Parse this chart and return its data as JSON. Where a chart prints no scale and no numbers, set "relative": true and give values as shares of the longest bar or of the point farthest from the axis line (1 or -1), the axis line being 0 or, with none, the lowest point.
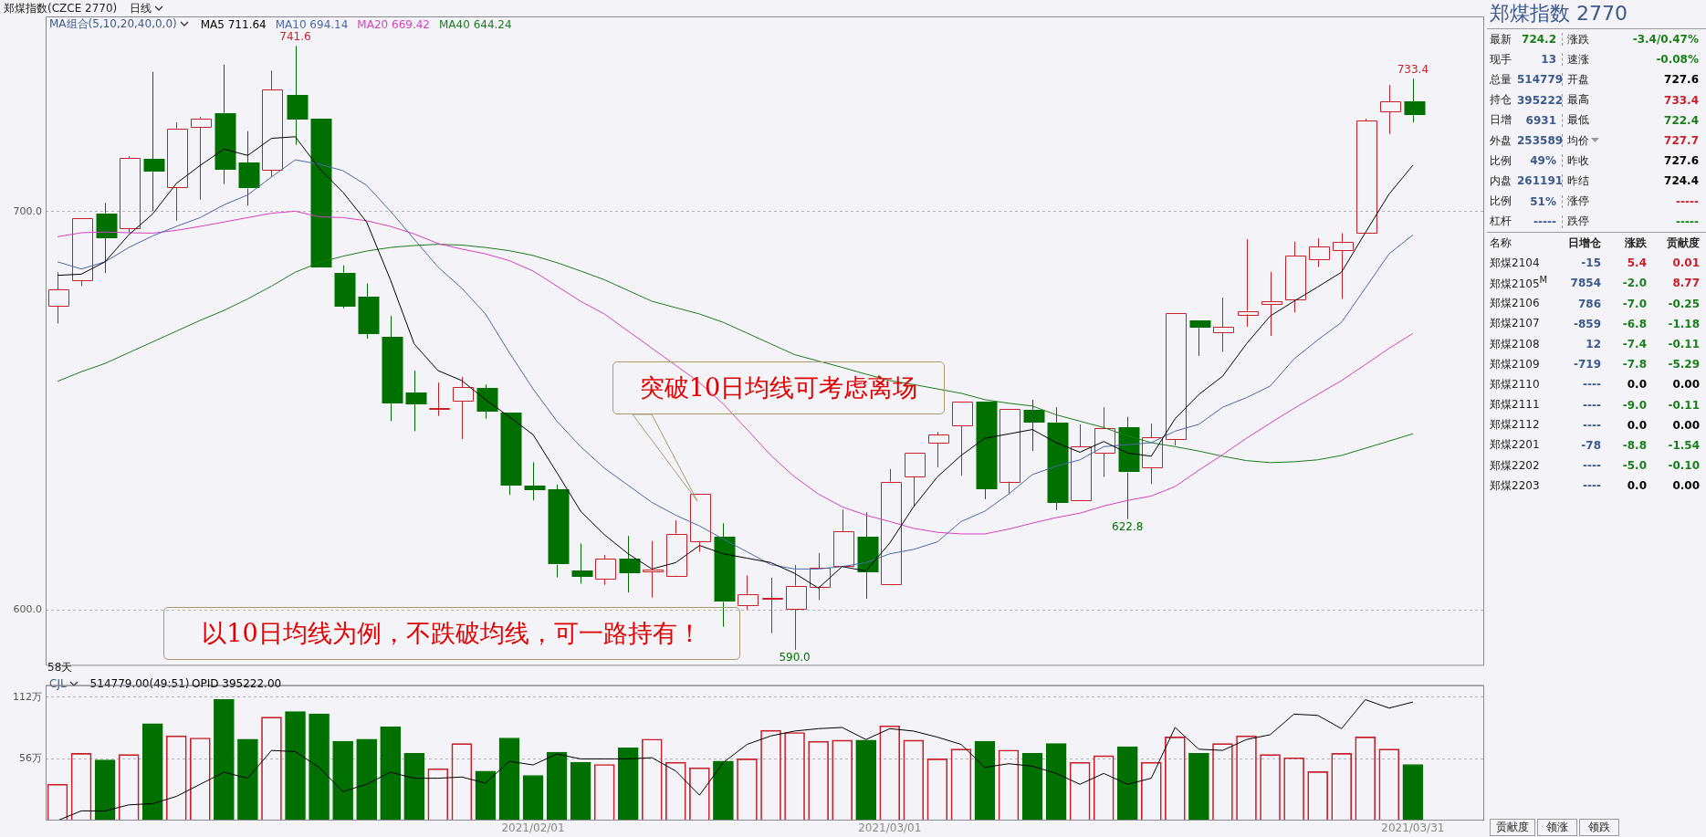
{
  "chart_data": [
    {
      "type": "candlestick",
      "title": "郑煤指数(CZCE 2770)",
      "subtitle": "日线",
      "legend_title": "MA组合(5,10,20,40,0,0)",
      "legend": "top left",
      "grid": "y",
      "tick_labels": "y",
      "categories": [
        null,
        null,
        null,
        null,
        null,
        null,
        null,
        null,
        null,
        null,
        null,
        null,
        null,
        null,
        null,
        null,
        null,
        null,
        null,
        null,
        "2021/02/01",
        null,
        null,
        null,
        null,
        null,
        null,
        null,
        null,
        null,
        null,
        null,
        null,
        null,
        null,
        "2021/03/01",
        null,
        null,
        null,
        null,
        null,
        null,
        null,
        null,
        null,
        null,
        null,
        null,
        null,
        null,
        null,
        null,
        null,
        null,
        null,
        null,
        null,
        "2021/03/31"
      ],
      "ohlc": [
        [
          676.3,
          684.8,
          671.9,
          680.4
        ],
        [
          682.8,
          698.3,
          681.3,
          698.3
        ],
        [
          699.6,
          702.2,
          684.6,
          693.4
        ],
        [
          695.7,
          713.9,
          694.7,
          713.4
        ],
        [
          713.2,
          735.1,
          700.1,
          710.0
        ],
        [
          706.2,
          722.4,
          697.7,
          720.9
        ],
        [
          721.3,
          723.8,
          703.0,
          723.4
        ],
        [
          724.8,
          736.9,
          706.9,
          710.6
        ],
        [
          712.3,
          720.2,
          701.5,
          705.8
        ],
        [
          710.5,
          735.4,
          708.7,
          730.6
        ],
        [
          729.2,
          741.6,
          716.8,
          723.1
        ],
        [
          723.4,
          723.4,
          686.1,
          686.1
        ],
        [
          684.7,
          686.5,
          675.7,
          676.3
        ],
        [
          678.7,
          682.0,
          668.1,
          669.4
        ],
        [
          668.5,
          673.8,
          647.4,
          651.8
        ],
        [
          654.6,
          660.1,
          644.9,
          651.6
        ],
        [
          650.3,
          657.1,
          648.7,
          650.6
        ],
        [
          652.5,
          658.5,
          642.9,
          655.9
        ],
        [
          655.7,
          656.6,
          648.0,
          649.8
        ],
        [
          649.5,
          649.5,
          628.9,
          631.2
        ],
        [
          631.2,
          637.1,
          627.5,
          630.1
        ],
        [
          630.2,
          631.5,
          608.2,
          611.3
        ],
        [
          609.9,
          616.7,
          606.6,
          608.4
        ],
        [
          607.8,
          613.8,
          606.3,
          612.8
        ],
        [
          612.8,
          618.6,
          604.4,
          609.2
        ],
        [
          609.7,
          617.3,
          603.1,
          610.1
        ],
        [
          608.6,
          622.5,
          608.4,
          619.2
        ],
        [
          617.1,
          629.1,
          614.6,
          629.1
        ],
        [
          618.3,
          621.8,
          595.8,
          602.0
        ],
        [
          601.2,
          608.7,
          600.1,
          604.0
        ],
        [
          602.7,
          608.1,
          594.2,
          603.0
        ],
        [
          600.3,
          611.3,
          590.0,
          606.1
        ],
        [
          605.9,
          614.3,
          602.5,
          610.6
        ],
        [
          611.1,
          625.2,
          611.1,
          619.8
        ],
        [
          618.4,
          624.5,
          602.8,
          609.5
        ],
        [
          606.6,
          635.4,
          606.6,
          632.2
        ],
        [
          633.5,
          639.4,
          625.9,
          639.4
        ],
        [
          642.0,
          644.7,
          635.8,
          644.0
        ],
        [
          646.3,
          652.3,
          633.7,
          652.3
        ],
        [
          652.4,
          652.4,
          627.8,
          630.5
        ],
        [
          632.2,
          650.5,
          629.1,
          650.5
        ],
        [
          650.3,
          652.8,
          639.9,
          647.2
        ],
        [
          647.1,
          650.9,
          625.1,
          627.0
        ],
        [
          627.4,
          646.6,
          627.4,
          641.0
        ],
        [
          639.4,
          650.9,
          633.4,
          645.6
        ],
        [
          645.8,
          648.5,
          622.8,
          634.5
        ],
        [
          635.7,
          646.8,
          631.6,
          643.3
        ],
        [
          642.9,
          674.6,
          641.3,
          674.6
        ],
        [
          672.7,
          672.7,
          663.8,
          670.8
        ],
        [
          669.7,
          678.4,
          664.8,
          671.0
        ],
        [
          674.2,
          693.1,
          671.1,
          675.1
        ],
        [
          676.8,
          684.9,
          668.8,
          677.5
        ],
        [
          678.0,
          692.4,
          674.7,
          688.9
        ],
        [
          688.0,
          693.3,
          686.1,
          691.2
        ],
        [
          690.3,
          694.6,
          678.1,
          692.3
        ],
        [
          694.7,
          723.3,
          694.7,
          722.8
        ],
        [
          725.1,
          731.8,
          719.5,
          727.6
        ],
        [
          727.6,
          733.4,
          722.4,
          724.2
        ]
      ],
      "colors": [
        "#c8202a",
        "#c8202a",
        "#007000",
        "#c8202a",
        "#007000",
        "#c8202a",
        "#c8202a",
        "#007000",
        "#007000",
        "#c8202a",
        "#007000",
        "#007000",
        "#007000",
        "#007000",
        "#007000",
        "#007000",
        "#c8202a",
        "#c8202a",
        "#007000",
        "#007000",
        "#007000",
        "#007000",
        "#007000",
        "#c8202a",
        "#007000",
        "#c8202a",
        "#c8202a",
        "#c8202a",
        "#007000",
        "#c8202a",
        "#c8202a",
        "#c8202a",
        "#c8202a",
        "#c8202a",
        "#007000",
        "#c8202a",
        "#c8202a",
        "#c8202a",
        "#c8202a",
        "#007000",
        "#c8202a",
        "#007000",
        "#007000",
        "#c8202a",
        "#c8202a",
        "#007000",
        "#c8202a",
        "#c8202a",
        "#007000",
        "#c8202a",
        "#c8202a",
        "#c8202a",
        "#c8202a",
        "#c8202a",
        "#c8202a",
        "#c8202a",
        "#c8202a",
        "#007000"
      ],
      "series": [
        {
          "name": "MA5 711.64",
          "type": "line",
          "color": "#000000",
          "values": [
            684.0,
            684.3,
            687.4,
            694.2,
            699.4,
            707.1,
            711.6,
            715.7,
            714.1,
            718.4,
            718.8,
            710.9,
            704.9,
            697.4,
            682.9,
            666.8,
            660.1,
            657.6,
            652.8,
            648.5,
            644.0,
            634.5,
            624.8,
            618.9,
            614.1,
            610.3,
            611.9,
            616.2,
            614.1,
            613.0,
            611.9,
            609.2,
            605.5,
            610.9,
            609.8,
            616.8,
            625.9,
            633.4,
            638.8,
            643.1,
            644.2,
            645.3,
            642.0,
            639.6,
            642.3,
            639.4,
            638.6,
            648.0,
            654.1,
            658.7,
            666.8,
            673.8,
            677.5,
            681.1,
            684.8,
            694.7,
            704.4,
            711.64
          ]
        },
        {
          "name": "MA10 694.14",
          "type": "line",
          "color": "#4a68a8",
          "values": [
            687.4,
            685.6,
            687.4,
            691.0,
            693.9,
            696.3,
            698.5,
            701.7,
            704.2,
            708.7,
            713.0,
            711.9,
            710.3,
            706.6,
            700.1,
            693.1,
            686.1,
            680.8,
            674.3,
            664.6,
            655.5,
            647.4,
            641.0,
            635.6,
            631.3,
            627.0,
            623.8,
            621.1,
            617.8,
            614.6,
            611.4,
            610.3,
            610.3,
            610.9,
            611.9,
            614.1,
            615.2,
            617.1,
            622.2,
            624.8,
            629.1,
            634.0,
            636.1,
            637.7,
            641.0,
            641.5,
            642.0,
            644.9,
            646.6,
            650.9,
            653.3,
            656.2,
            663.0,
            667.8,
            672.2,
            680.8,
            689.4,
            694.14
          ]
        },
        {
          "name": "MA20 669.42",
          "type": "line",
          "color": "#d63fc0",
          "values": [
            693.7,
            694.7,
            694.9,
            694.7,
            694.6,
            695.3,
            696.3,
            697.4,
            698.5,
            699.6,
            700.1,
            698.7,
            698.5,
            697.7,
            696.3,
            694.4,
            692.0,
            690.6,
            689.4,
            687.7,
            685.1,
            681.3,
            677.5,
            674.3,
            670.0,
            665.7,
            661.4,
            657.1,
            651.7,
            645.3,
            638.8,
            633.4,
            629.1,
            625.9,
            623.8,
            622.2,
            620.5,
            619.5,
            619.1,
            619.1,
            620.3,
            621.8,
            623.2,
            624.3,
            626.1,
            627.5,
            628.6,
            631.0,
            635.1,
            639.0,
            643.1,
            646.9,
            650.6,
            654.1,
            657.6,
            661.6,
            665.7,
            669.42
          ]
        },
        {
          "name": "MA40 644.24",
          "type": "line",
          "color": "#1f7a1f",
          "values": [
            657.4,
            659.8,
            661.9,
            664.6,
            667.3,
            670.0,
            672.7,
            675.2,
            678.1,
            681.3,
            684.8,
            687.2,
            688.8,
            690.1,
            691.0,
            691.5,
            691.8,
            691.6,
            691.0,
            690.2,
            689.0,
            687.2,
            685.1,
            682.9,
            680.2,
            677.5,
            675.9,
            674.3,
            672.2,
            669.5,
            666.8,
            664.1,
            662.5,
            660.9,
            659.2,
            657.6,
            656.6,
            655.5,
            654.4,
            652.8,
            651.9,
            651.2,
            649.0,
            647.4,
            645.8,
            643.7,
            642.0,
            641.0,
            639.9,
            638.6,
            637.5,
            637.0,
            637.2,
            637.7,
            638.8,
            640.6,
            642.4,
            644.24
          ]
        }
      ],
      "ylim": [
        586,
        749
      ],
      "yticks": [
        {
          "value": 600,
          "label": "600.0"
        },
        {
          "value": 700,
          "label": "700.0"
        }
      ],
      "annotations": [
        "突破10日均线可考虑离场",
        "以10日均线为例，不跌破均线，可一路持有！",
        "58天",
        {
          "text": "741.6",
          "y": 741.6
        },
        {
          "text": "733.4",
          "y": 733.4
        },
        {
          "text": "590.0",
          "y": 590.0
        },
        {
          "text": "622.8",
          "y": 622.8
        }
      ]
    },
    {
      "type": "bar",
      "legend_title": "CJL",
      "legend": "top left",
      "grid": "y",
      "categories": [
        null,
        null,
        null,
        null,
        null,
        null,
        null,
        null,
        null,
        null,
        null,
        null,
        null,
        null,
        null,
        null,
        null,
        null,
        null,
        null,
        "2021/02/01",
        null,
        null,
        null,
        null,
        null,
        null,
        null,
        null,
        null,
        null,
        null,
        null,
        null,
        null,
        "2021/03/01",
        null,
        null,
        null,
        null,
        null,
        null,
        null,
        null,
        null,
        null,
        null,
        null,
        null,
        null,
        null,
        null,
        null,
        null,
        null,
        null,
        null,
        "2021/03/31"
      ],
      "series": [
        {
          "name": "514779.00(49:51)",
          "colors": [
            "#c8202a",
            "#c8202a",
            "#007000",
            "#c8202a",
            "#007000",
            "#c8202a",
            "#c8202a",
            "#007000",
            "#007000",
            "#c8202a",
            "#007000",
            "#007000",
            "#007000",
            "#007000",
            "#007000",
            "#007000",
            "#c8202a",
            "#c8202a",
            "#007000",
            "#007000",
            "#007000",
            "#007000",
            "#007000",
            "#c8202a",
            "#007000",
            "#c8202a",
            "#c8202a",
            "#c8202a",
            "#007000",
            "#c8202a",
            "#c8202a",
            "#c8202a",
            "#c8202a",
            "#c8202a",
            "#007000",
            "#c8202a",
            "#c8202a",
            "#c8202a",
            "#c8202a",
            "#007000",
            "#c8202a",
            "#007000",
            "#007000",
            "#c8202a",
            "#c8202a",
            "#007000",
            "#c8202a",
            "#c8202a",
            "#007000",
            "#c8202a",
            "#c8202a",
            "#c8202a",
            "#c8202a",
            "#c8202a",
            "#c8202a",
            "#c8202a",
            "#c8202a",
            "#007000"
          ],
          "values": [
            33,
            61,
            55,
            60,
            88,
            77,
            75,
            110,
            74,
            94,
            99,
            97,
            72,
            74,
            85,
            61,
            47,
            70,
            45,
            75,
            41,
            62,
            53,
            51,
            66,
            74,
            53,
            48,
            54,
            56,
            82,
            80,
            72,
            73,
            73,
            86,
            73,
            56,
            65,
            72,
            64,
            61,
            70,
            53,
            59,
            67,
            53,
            76,
            61,
            70,
            77,
            60,
            57,
            44.4,
            61,
            76,
            65,
            51
          ]
        }
      ],
      "ylim": [
        0,
        123
      ],
      "yticks": [
        {
          "value": 56,
          "label": "56万"
        },
        {
          "value": 112,
          "label": "112万"
        }
      ]
    },
    {
      "type": "line",
      "relative": true,
      "tick_labels": false,
      "categories": [
        null,
        null,
        null,
        null,
        null,
        null,
        null,
        null,
        null,
        null,
        null,
        null,
        null,
        null,
        null,
        null,
        null,
        null,
        null,
        null,
        "2021/02/01",
        null,
        null,
        null,
        null,
        null,
        null,
        null,
        null,
        null,
        null,
        null,
        null,
        null,
        null,
        "2021/03/01",
        null,
        null,
        null,
        null,
        null,
        null,
        null,
        null,
        null,
        null,
        null,
        null,
        null,
        null,
        null,
        null,
        null,
        null,
        null,
        null,
        null,
        "2021/03/31"
      ],
      "series": [
        {
          "name": "OPID 395222.00",
          "color": "#000000",
          "values": [
            0,
            0.08,
            0.08,
            0.13,
            0.14,
            0.2,
            0.3,
            0.4,
            0.35,
            0.58,
            0.57,
            0.44,
            0.24,
            0.3,
            0.4,
            0.35,
            0.35,
            0.36,
            0.31,
            0.49,
            0.46,
            0.55,
            0.51,
            0.51,
            0.51,
            0.52,
            0.41,
            0.21,
            0.48,
            0.63,
            0.7,
            0.74,
            0.76,
            0.77,
            0.67,
            0.76,
            0.74,
            0.69,
            0.63,
            0.44,
            0.47,
            0.45,
            0.39,
            0.3,
            0.39,
            0.3,
            0.35,
            0.77,
            0.59,
            0.58,
            0.67,
            0.71,
            0.88,
            0.87,
            0.76,
            1,
            0.93,
            0.98
          ]
        }
      ]
    },
    {
      "type": "other",
      "title": "郑煤指数  2770",
      "annotations": [
        "最新",
        "724.2",
        "涨跌",
        "-3.4/0.47%",
        "现手",
        "13",
        "速涨",
        "-0.08%",
        "总量",
        "514779",
        "开盘",
        "727.6",
        "持仓",
        "395222",
        "最高",
        "733.4",
        "日增",
        "6931",
        "最低",
        "722.4",
        "外盘",
        "253589",
        "均价",
        "727.7",
        "比例",
        "49%",
        "昨收",
        "727.6",
        "内盘",
        "261191",
        "昨结",
        "724.4",
        "比例",
        "51%",
        "涨停",
        "-----",
        "杠杆",
        "-----",
        "跌停",
        "-----"
      ],
      "colors": [
        "#222222",
        "#1a7f1a",
        "#222222",
        "#1a7f1a",
        "#222222",
        "#3c5a8c",
        "#222222",
        "#1a7f1a",
        "#222222",
        "#3c5a8c",
        "#222222",
        "#000000",
        "#222222",
        "#3c5a8c",
        "#222222",
        "#c8202a",
        "#222222",
        "#3c5a8c",
        "#222222",
        "#1a7f1a",
        "#222222",
        "#3c5a8c",
        "#222222",
        "#c8202a",
        "#222222",
        "#3c5a8c",
        "#222222",
        "#000000",
        "#222222",
        "#3c5a8c",
        "#222222",
        "#000000",
        "#222222",
        "#3c5a8c",
        "#222222",
        "#c8202a",
        "#222222",
        "#3c5a8c",
        "#222222",
        "#1a7f1a"
      ]
    },
    {
      "type": "other",
      "annotations": [
        "名称",
        "日增仓",
        "涨跌",
        "贡献度",
        "郑煤2104",
        "-15",
        "5.4",
        "0.01",
        "郑煤2105$^{M}$",
        "7854",
        "-2.0",
        "8.77",
        "郑煤2106",
        "786",
        "-7.0",
        "-0.25",
        "郑煤2107",
        "-859",
        "-6.8",
        "-1.18",
        "郑煤2108",
        "12",
        "-7.4",
        "-0.11",
        "郑煤2109",
        "-719",
        "-7.8",
        "-5.29",
        "郑煤2110",
        "----",
        "0.0",
        "0.00",
        "郑煤2111",
        "----",
        "-9.0",
        "-0.11",
        "郑煤2112",
        "----",
        "0.0",
        "0.00",
        "郑煤2201",
        "-78",
        "-8.8",
        "-1.54",
        "郑煤2202",
        "----",
        "-5.0",
        "-0.10",
        "郑煤2203",
        "----",
        "0.0",
        "0.00"
      ],
      "colors": [
        "#222222",
        "#222222",
        "#222222",
        "#222222",
        "#222222",
        "#3c5a8c",
        "#c8202a",
        "#c8202a",
        "#222222",
        "#3c5a8c",
        "#1a7f1a",
        "#c8202a",
        "#222222",
        "#3c5a8c",
        "#1a7f1a",
        "#1a7f1a",
        "#222222",
        "#3c5a8c",
        "#1a7f1a",
        "#1a7f1a",
        "#222222",
        "#3c5a8c",
        "#1a7f1a",
        "#1a7f1a",
        "#222222",
        "#3c5a8c",
        "#1a7f1a",
        "#1a7f1a",
        "#222222",
        "#3c5a8c",
        "#000000",
        "#000000",
        "#222222",
        "#3c5a8c",
        "#1a7f1a",
        "#1a7f1a",
        "#222222",
        "#3c5a8c",
        "#000000",
        "#000000",
        "#222222",
        "#3c5a8c",
        "#1a7f1a",
        "#1a7f1a",
        "#222222",
        "#3c5a8c",
        "#1a7f1a",
        "#1a7f1a",
        "#222222",
        "#3c5a8c",
        "#000000",
        "#000000"
      ]
    },
    {
      "type": "other",
      "annotations": [
        "贡献度",
        "领涨",
        "领跌"
      ]
    }
  ]
}
